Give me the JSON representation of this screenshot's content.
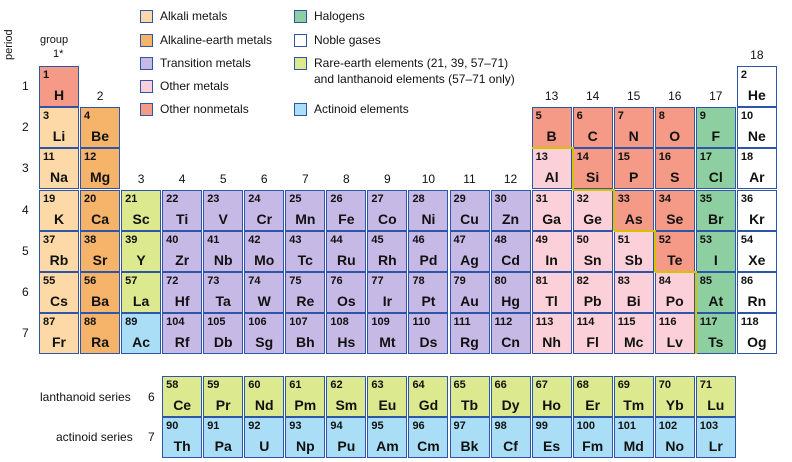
{
  "colors": {
    "alkali": "#fcd9a7",
    "alkaline_earth": "#f6b46a",
    "transition": "#c7b9e6",
    "other_metal": "#fbd0d8",
    "other_nonmetal": "#f59a86",
    "halogen": "#8dcfa0",
    "noble": "#ffffff",
    "rare_earth": "#dde98f",
    "actinoid": "#a9def6",
    "border": "#2e55a8",
    "stair": "#d6c300"
  },
  "legend": [
    {
      "category": "alkali",
      "label": "Alkali metals"
    },
    {
      "category": "alkaline_earth",
      "label": "Alkaline-earth metals"
    },
    {
      "category": "transition",
      "label": "Transition metals"
    },
    {
      "category": "other_metal",
      "label": "Other metals"
    },
    {
      "category": "other_nonmetal",
      "label": "Other nonmetals"
    },
    {
      "category": "halogen",
      "label": "Halogens"
    },
    {
      "category": "noble",
      "label": "Noble gases"
    },
    {
      "category": "rare_earth",
      "label": "Rare-earth elements (21, 39, 57–71)",
      "label2": "and lanthanoid elements (57–71 only)"
    },
    {
      "category": "actinoid",
      "label": "Actinoid elements"
    }
  ],
  "axis": {
    "period_label": "period",
    "group_label": "group",
    "group1_label": "1*",
    "periods": [
      "1",
      "2",
      "3",
      "4",
      "5",
      "6",
      "7"
    ],
    "groups": [
      "2",
      "3",
      "4",
      "5",
      "6",
      "7",
      "8",
      "9",
      "10",
      "11",
      "12",
      "13",
      "14",
      "15",
      "16",
      "17",
      "18"
    ]
  },
  "series_labels": {
    "lanthanoid": "lanthanoid series",
    "lanthanoid_period": "6",
    "actinoid": "actinoid series",
    "actinoid_period": "7"
  },
  "elements": [
    {
      "n": "1",
      "s": "H",
      "g": 1,
      "p": 1,
      "c": "other_nonmetal"
    },
    {
      "n": "2",
      "s": "He",
      "g": 18,
      "p": 1,
      "c": "noble"
    },
    {
      "n": "3",
      "s": "Li",
      "g": 1,
      "p": 2,
      "c": "alkali"
    },
    {
      "n": "4",
      "s": "Be",
      "g": 2,
      "p": 2,
      "c": "alkaline_earth"
    },
    {
      "n": "5",
      "s": "B",
      "g": 13,
      "p": 2,
      "c": "other_nonmetal"
    },
    {
      "n": "6",
      "s": "C",
      "g": 14,
      "p": 2,
      "c": "other_nonmetal"
    },
    {
      "n": "7",
      "s": "N",
      "g": 15,
      "p": 2,
      "c": "other_nonmetal"
    },
    {
      "n": "8",
      "s": "O",
      "g": 16,
      "p": 2,
      "c": "other_nonmetal"
    },
    {
      "n": "9",
      "s": "F",
      "g": 17,
      "p": 2,
      "c": "halogen"
    },
    {
      "n": "10",
      "s": "Ne",
      "g": 18,
      "p": 2,
      "c": "noble"
    },
    {
      "n": "11",
      "s": "Na",
      "g": 1,
      "p": 3,
      "c": "alkali"
    },
    {
      "n": "12",
      "s": "Mg",
      "g": 2,
      "p": 3,
      "c": "alkaline_earth"
    },
    {
      "n": "13",
      "s": "Al",
      "g": 13,
      "p": 3,
      "c": "other_metal"
    },
    {
      "n": "14",
      "s": "Si",
      "g": 14,
      "p": 3,
      "c": "other_nonmetal"
    },
    {
      "n": "15",
      "s": "P",
      "g": 15,
      "p": 3,
      "c": "other_nonmetal"
    },
    {
      "n": "16",
      "s": "S",
      "g": 16,
      "p": 3,
      "c": "other_nonmetal"
    },
    {
      "n": "17",
      "s": "Cl",
      "g": 17,
      "p": 3,
      "c": "halogen"
    },
    {
      "n": "18",
      "s": "Ar",
      "g": 18,
      "p": 3,
      "c": "noble"
    },
    {
      "n": "19",
      "s": "K",
      "g": 1,
      "p": 4,
      "c": "alkali"
    },
    {
      "n": "20",
      "s": "Ca",
      "g": 2,
      "p": 4,
      "c": "alkaline_earth"
    },
    {
      "n": "21",
      "s": "Sc",
      "g": 3,
      "p": 4,
      "c": "rare_earth"
    },
    {
      "n": "22",
      "s": "Ti",
      "g": 4,
      "p": 4,
      "c": "transition"
    },
    {
      "n": "23",
      "s": "V",
      "g": 5,
      "p": 4,
      "c": "transition"
    },
    {
      "n": "24",
      "s": "Cr",
      "g": 6,
      "p": 4,
      "c": "transition"
    },
    {
      "n": "25",
      "s": "Mn",
      "g": 7,
      "p": 4,
      "c": "transition"
    },
    {
      "n": "26",
      "s": "Fe",
      "g": 8,
      "p": 4,
      "c": "transition"
    },
    {
      "n": "27",
      "s": "Co",
      "g": 9,
      "p": 4,
      "c": "transition"
    },
    {
      "n": "28",
      "s": "Ni",
      "g": 10,
      "p": 4,
      "c": "transition"
    },
    {
      "n": "29",
      "s": "Cu",
      "g": 11,
      "p": 4,
      "c": "transition"
    },
    {
      "n": "30",
      "s": "Zn",
      "g": 12,
      "p": 4,
      "c": "transition"
    },
    {
      "n": "31",
      "s": "Ga",
      "g": 13,
      "p": 4,
      "c": "other_metal"
    },
    {
      "n": "32",
      "s": "Ge",
      "g": 14,
      "p": 4,
      "c": "other_metal"
    },
    {
      "n": "33",
      "s": "As",
      "g": 15,
      "p": 4,
      "c": "other_nonmetal"
    },
    {
      "n": "34",
      "s": "Se",
      "g": 16,
      "p": 4,
      "c": "other_nonmetal"
    },
    {
      "n": "35",
      "s": "Br",
      "g": 17,
      "p": 4,
      "c": "halogen"
    },
    {
      "n": "36",
      "s": "Kr",
      "g": 18,
      "p": 4,
      "c": "noble"
    },
    {
      "n": "37",
      "s": "Rb",
      "g": 1,
      "p": 5,
      "c": "alkali"
    },
    {
      "n": "38",
      "s": "Sr",
      "g": 2,
      "p": 5,
      "c": "alkaline_earth"
    },
    {
      "n": "39",
      "s": "Y",
      "g": 3,
      "p": 5,
      "c": "rare_earth"
    },
    {
      "n": "40",
      "s": "Zr",
      "g": 4,
      "p": 5,
      "c": "transition"
    },
    {
      "n": "41",
      "s": "Nb",
      "g": 5,
      "p": 5,
      "c": "transition"
    },
    {
      "n": "42",
      "s": "Mo",
      "g": 6,
      "p": 5,
      "c": "transition"
    },
    {
      "n": "43",
      "s": "Tc",
      "g": 7,
      "p": 5,
      "c": "transition"
    },
    {
      "n": "44",
      "s": "Ru",
      "g": 8,
      "p": 5,
      "c": "transition"
    },
    {
      "n": "45",
      "s": "Rh",
      "g": 9,
      "p": 5,
      "c": "transition"
    },
    {
      "n": "46",
      "s": "Pd",
      "g": 10,
      "p": 5,
      "c": "transition"
    },
    {
      "n": "47",
      "s": "Ag",
      "g": 11,
      "p": 5,
      "c": "transition"
    },
    {
      "n": "48",
      "s": "Cd",
      "g": 12,
      "p": 5,
      "c": "transition"
    },
    {
      "n": "49",
      "s": "In",
      "g": 13,
      "p": 5,
      "c": "other_metal"
    },
    {
      "n": "50",
      "s": "Sn",
      "g": 14,
      "p": 5,
      "c": "other_metal"
    },
    {
      "n": "51",
      "s": "Sb",
      "g": 15,
      "p": 5,
      "c": "other_metal"
    },
    {
      "n": "52",
      "s": "Te",
      "g": 16,
      "p": 5,
      "c": "other_nonmetal"
    },
    {
      "n": "53",
      "s": "I",
      "g": 17,
      "p": 5,
      "c": "halogen"
    },
    {
      "n": "54",
      "s": "Xe",
      "g": 18,
      "p": 5,
      "c": "noble"
    },
    {
      "n": "55",
      "s": "Cs",
      "g": 1,
      "p": 6,
      "c": "alkali"
    },
    {
      "n": "56",
      "s": "Ba",
      "g": 2,
      "p": 6,
      "c": "alkaline_earth"
    },
    {
      "n": "57",
      "s": "La",
      "g": 3,
      "p": 6,
      "c": "rare_earth"
    },
    {
      "n": "72",
      "s": "Hf",
      "g": 4,
      "p": 6,
      "c": "transition"
    },
    {
      "n": "73",
      "s": "Ta",
      "g": 5,
      "p": 6,
      "c": "transition"
    },
    {
      "n": "74",
      "s": "W",
      "g": 6,
      "p": 6,
      "c": "transition"
    },
    {
      "n": "75",
      "s": "Re",
      "g": 7,
      "p": 6,
      "c": "transition"
    },
    {
      "n": "76",
      "s": "Os",
      "g": 8,
      "p": 6,
      "c": "transition"
    },
    {
      "n": "77",
      "s": "Ir",
      "g": 9,
      "p": 6,
      "c": "transition"
    },
    {
      "n": "78",
      "s": "Pt",
      "g": 10,
      "p": 6,
      "c": "transition"
    },
    {
      "n": "79",
      "s": "Au",
      "g": 11,
      "p": 6,
      "c": "transition"
    },
    {
      "n": "80",
      "s": "Hg",
      "g": 12,
      "p": 6,
      "c": "transition"
    },
    {
      "n": "81",
      "s": "Tl",
      "g": 13,
      "p": 6,
      "c": "other_metal"
    },
    {
      "n": "82",
      "s": "Pb",
      "g": 14,
      "p": 6,
      "c": "other_metal"
    },
    {
      "n": "83",
      "s": "Bi",
      "g": 15,
      "p": 6,
      "c": "other_metal"
    },
    {
      "n": "84",
      "s": "Po",
      "g": 16,
      "p": 6,
      "c": "other_metal"
    },
    {
      "n": "85",
      "s": "At",
      "g": 17,
      "p": 6,
      "c": "halogen"
    },
    {
      "n": "86",
      "s": "Rn",
      "g": 18,
      "p": 6,
      "c": "noble"
    },
    {
      "n": "87",
      "s": "Fr",
      "g": 1,
      "p": 7,
      "c": "alkali"
    },
    {
      "n": "88",
      "s": "Ra",
      "g": 2,
      "p": 7,
      "c": "alkaline_earth"
    },
    {
      "n": "89",
      "s": "Ac",
      "g": 3,
      "p": 7,
      "c": "actinoid"
    },
    {
      "n": "104",
      "s": "Rf",
      "g": 4,
      "p": 7,
      "c": "transition"
    },
    {
      "n": "105",
      "s": "Db",
      "g": 5,
      "p": 7,
      "c": "transition"
    },
    {
      "n": "106",
      "s": "Sg",
      "g": 6,
      "p": 7,
      "c": "transition"
    },
    {
      "n": "107",
      "s": "Bh",
      "g": 7,
      "p": 7,
      "c": "transition"
    },
    {
      "n": "108",
      "s": "Hs",
      "g": 8,
      "p": 7,
      "c": "transition"
    },
    {
      "n": "109",
      "s": "Mt",
      "g": 9,
      "p": 7,
      "c": "transition"
    },
    {
      "n": "110",
      "s": "Ds",
      "g": 10,
      "p": 7,
      "c": "transition"
    },
    {
      "n": "111",
      "s": "Rg",
      "g": 11,
      "p": 7,
      "c": "transition"
    },
    {
      "n": "112",
      "s": "Cn",
      "g": 12,
      "p": 7,
      "c": "transition"
    },
    {
      "n": "113",
      "s": "Nh",
      "g": 13,
      "p": 7,
      "c": "other_metal"
    },
    {
      "n": "114",
      "s": "Fl",
      "g": 14,
      "p": 7,
      "c": "other_metal"
    },
    {
      "n": "115",
      "s": "Mc",
      "g": 15,
      "p": 7,
      "c": "other_metal"
    },
    {
      "n": "116",
      "s": "Lv",
      "g": 16,
      "p": 7,
      "c": "other_metal"
    },
    {
      "n": "117",
      "s": "Ts",
      "g": 17,
      "p": 7,
      "c": "halogen"
    },
    {
      "n": "118",
      "s": "Og",
      "g": 18,
      "p": 7,
      "c": "noble"
    }
  ],
  "lanthanoids": [
    {
      "n": "58",
      "s": "Ce"
    },
    {
      "n": "59",
      "s": "Pr"
    },
    {
      "n": "60",
      "s": "Nd"
    },
    {
      "n": "61",
      "s": "Pm"
    },
    {
      "n": "62",
      "s": "Sm"
    },
    {
      "n": "63",
      "s": "Eu"
    },
    {
      "n": "64",
      "s": "Gd"
    },
    {
      "n": "65",
      "s": "Tb"
    },
    {
      "n": "66",
      "s": "Dy"
    },
    {
      "n": "67",
      "s": "Ho"
    },
    {
      "n": "68",
      "s": "Er"
    },
    {
      "n": "69",
      "s": "Tm"
    },
    {
      "n": "70",
      "s": "Yb"
    },
    {
      "n": "71",
      "s": "Lu"
    }
  ],
  "actinoids": [
    {
      "n": "90",
      "s": "Th"
    },
    {
      "n": "91",
      "s": "Pa"
    },
    {
      "n": "92",
      "s": "U"
    },
    {
      "n": "93",
      "s": "Np"
    },
    {
      "n": "94",
      "s": "Pu"
    },
    {
      "n": "95",
      "s": "Am"
    },
    {
      "n": "96",
      "s": "Cm"
    },
    {
      "n": "97",
      "s": "Bk"
    },
    {
      "n": "98",
      "s": "Cf"
    },
    {
      "n": "99",
      "s": "Es"
    },
    {
      "n": "100",
      "s": "Fm"
    },
    {
      "n": "101",
      "s": "Md"
    },
    {
      "n": "102",
      "s": "No"
    },
    {
      "n": "103",
      "s": "Lr"
    }
  ]
}
